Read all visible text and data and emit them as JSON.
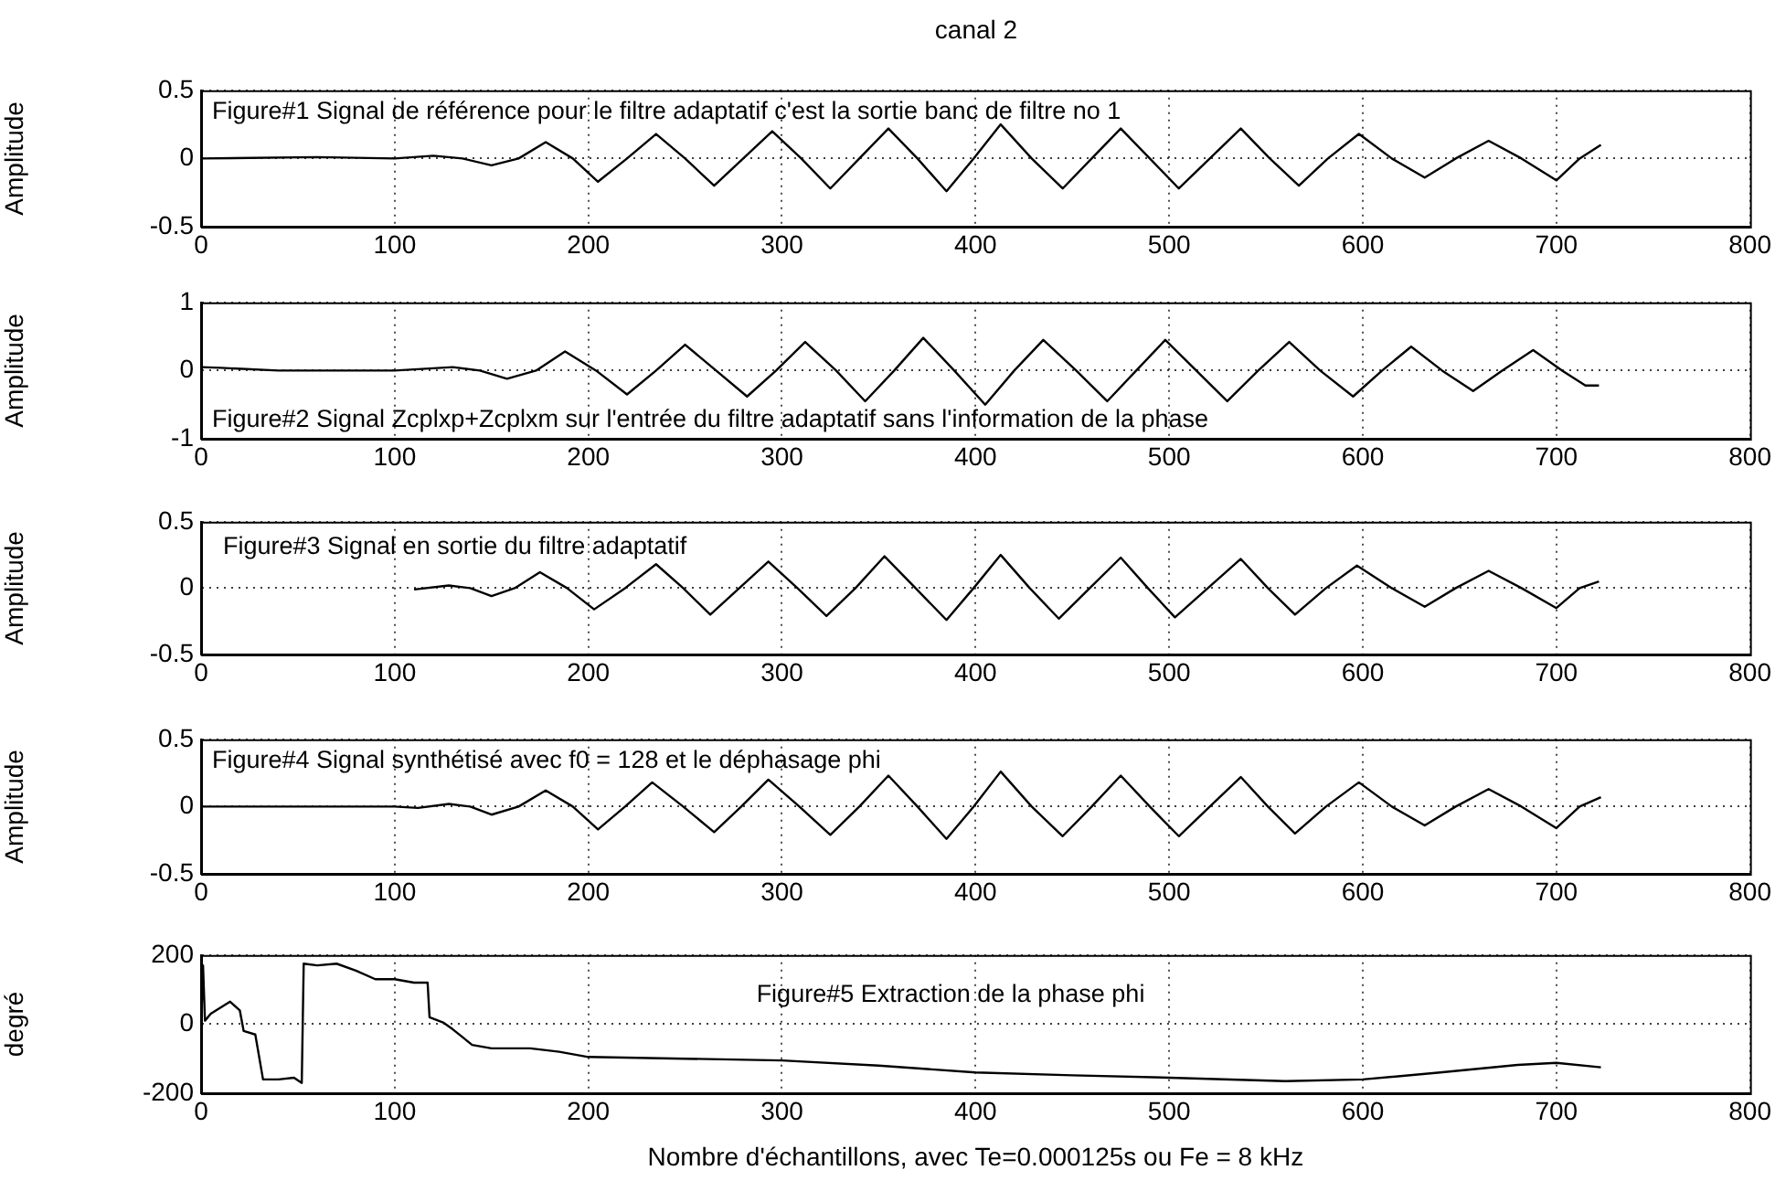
{
  "chart_data": [
    {
      "type": "line",
      "title": "canal 2",
      "ylabel": "Amplitude",
      "annotations": [
        "Figure#1 Signal de référence pour le filtre adaptatif c'est la sortie banc de filtre no 1"
      ],
      "xlim": [
        0,
        800
      ],
      "xticks": [
        0,
        100,
        200,
        300,
        400,
        500,
        600,
        700,
        800
      ],
      "ylim": [
        -0.5,
        0.5
      ],
      "yticks": [
        -0.5,
        0,
        0.5
      ],
      "grid": true,
      "series": [
        {
          "color": "#000000",
          "x": [
            0,
            60,
            100,
            120,
            135,
            150,
            164,
            178,
            192,
            205,
            220,
            235,
            250,
            265,
            280,
            295,
            310,
            325,
            340,
            355,
            370,
            385,
            399,
            413,
            429,
            445,
            460,
            475,
            490,
            505,
            521,
            537,
            552,
            567,
            582,
            598,
            615,
            632,
            648,
            665,
            682,
            700,
            712,
            723
          ],
          "values": [
            0,
            0.01,
            0,
            0.02,
            0,
            -0.05,
            0,
            0.12,
            0,
            -0.17,
            0,
            0.18,
            0,
            -0.2,
            0,
            0.2,
            0,
            -0.22,
            0,
            0.22,
            0,
            -0.24,
            0,
            0.25,
            0,
            -0.22,
            0,
            0.22,
            0,
            -0.22,
            0,
            0.22,
            0,
            -0.2,
            0,
            0.18,
            0,
            -0.14,
            0,
            0.13,
            0,
            -0.16,
            0,
            0.1
          ]
        }
      ]
    },
    {
      "type": "line",
      "ylabel": "Amplitude",
      "annotations": [
        "Figure#2 Signal Zcplxp+Zcplxm sur l'entrée du filtre adaptatif sans l'information de la phase"
      ],
      "xlim": [
        0,
        800
      ],
      "xticks": [
        0,
        100,
        200,
        300,
        400,
        500,
        600,
        700,
        800
      ],
      "ylim": [
        -1,
        1
      ],
      "yticks": [
        -1,
        0,
        1
      ],
      "grid": true,
      "series": [
        {
          "color": "#000000",
          "x": [
            0,
            10,
            40,
            100,
            130,
            144,
            158,
            173,
            188,
            204,
            220,
            235,
            250,
            266,
            282,
            297,
            312,
            328,
            343,
            358,
            373,
            389,
            405,
            420,
            435,
            452,
            468,
            483,
            498,
            514,
            530,
            546,
            562,
            578,
            595,
            610,
            625,
            641,
            657,
            672,
            688,
            703,
            715,
            722
          ],
          "values": [
            0.05,
            0.04,
            0,
            0,
            0.05,
            0,
            -0.12,
            0,
            0.28,
            0,
            -0.35,
            0,
            0.38,
            0,
            -0.38,
            0,
            0.42,
            0,
            -0.45,
            0,
            0.48,
            0,
            -0.5,
            0,
            0.45,
            0,
            -0.45,
            0,
            0.45,
            0,
            -0.45,
            0,
            0.42,
            0,
            -0.38,
            0,
            0.35,
            0,
            -0.3,
            0,
            0.3,
            0,
            -0.22,
            -0.22
          ]
        }
      ]
    },
    {
      "type": "line",
      "ylabel": "Amplitude",
      "annotations": [
        "Figure#3 Signal en sortie du filtre adaptatif"
      ],
      "xlim": [
        0,
        800
      ],
      "xticks": [
        0,
        100,
        200,
        300,
        400,
        500,
        600,
        700,
        800
      ],
      "ylim": [
        -0.5,
        0.5
      ],
      "yticks": [
        -0.5,
        0,
        0.5
      ],
      "grid": true,
      "series": [
        {
          "color": "#000000",
          "x": [
            110,
            128,
            139,
            150,
            162,
            175,
            189,
            203,
            219,
            235,
            249,
            263,
            278,
            293,
            308,
            323,
            338,
            353,
            369,
            385,
            399,
            413,
            428,
            443,
            459,
            475,
            489,
            503,
            520,
            537,
            551,
            565,
            581,
            597,
            615,
            632,
            648,
            665,
            682,
            700,
            712,
            722
          ],
          "values": [
            -0.01,
            0.02,
            0,
            -0.06,
            0,
            0.12,
            0,
            -0.16,
            0,
            0.18,
            0,
            -0.2,
            0,
            0.2,
            0,
            -0.21,
            0,
            0.24,
            0,
            -0.24,
            0,
            0.25,
            0,
            -0.23,
            0,
            0.23,
            0,
            -0.22,
            0,
            0.22,
            0,
            -0.2,
            0,
            0.17,
            0,
            -0.14,
            0,
            0.13,
            0,
            -0.15,
            0,
            0.05
          ]
        }
      ]
    },
    {
      "type": "line",
      "ylabel": "Amplitude",
      "annotations": [
        "Figure#4 Signal synthétisé avec f0 = 128 et le déphasage phi"
      ],
      "xlim": [
        0,
        800
      ],
      "xticks": [
        0,
        100,
        200,
        300,
        400,
        500,
        600,
        700,
        800
      ],
      "ylim": [
        -0.5,
        0.5
      ],
      "yticks": [
        -0.5,
        0,
        0.5
      ],
      "grid": true,
      "series": [
        {
          "color": "#000000",
          "x": [
            0,
            100,
            112,
            128,
            139,
            150,
            164,
            178,
            192,
            205,
            219,
            233,
            249,
            265,
            279,
            293,
            309,
            325,
            340,
            355,
            370,
            385,
            399,
            413,
            429,
            445,
            460,
            475,
            490,
            505,
            521,
            537,
            551,
            565,
            581,
            598,
            615,
            632,
            648,
            665,
            682,
            700,
            712,
            723
          ],
          "values": [
            0,
            0,
            -0.01,
            0.02,
            0,
            -0.06,
            0,
            0.12,
            0,
            -0.17,
            0,
            0.18,
            0,
            -0.19,
            0,
            0.2,
            0,
            -0.21,
            0,
            0.23,
            0,
            -0.24,
            0,
            0.26,
            0,
            -0.22,
            0,
            0.23,
            0,
            -0.22,
            0,
            0.22,
            0,
            -0.2,
            0,
            0.18,
            0,
            -0.14,
            0,
            0.13,
            0,
            -0.16,
            0,
            0.07
          ]
        }
      ]
    },
    {
      "type": "line",
      "ylabel": "degré",
      "xlabel": "Nombre d'échantillons, avec Te=0.000125s ou Fe = 8 kHz",
      "annotations": [
        "Figure#5 Extraction de la phase phi"
      ],
      "xlim": [
        0,
        800
      ],
      "xticks": [
        0,
        100,
        200,
        300,
        400,
        500,
        600,
        700,
        800
      ],
      "ylim": [
        -200,
        200
      ],
      "yticks": [
        -200,
        0,
        200
      ],
      "grid": true,
      "series": [
        {
          "color": "#000000",
          "x": [
            0,
            1,
            2,
            5,
            15,
            20,
            22,
            28,
            32,
            40,
            48,
            52,
            53,
            60,
            70,
            80,
            90,
            100,
            110,
            117,
            118,
            125,
            130,
            140,
            150,
            170,
            185,
            200,
            250,
            300,
            350,
            400,
            450,
            500,
            560,
            600,
            640,
            680,
            700,
            723
          ],
          "values": [
            -10,
            170,
            10,
            30,
            65,
            40,
            -20,
            -30,
            -160,
            -160,
            -155,
            -170,
            175,
            170,
            175,
            155,
            130,
            130,
            120,
            120,
            20,
            5,
            -15,
            -60,
            -70,
            -70,
            -80,
            -95,
            -100,
            -105,
            -120,
            -140,
            -148,
            -155,
            -165,
            -160,
            -140,
            -118,
            -112,
            -125
          ]
        }
      ]
    }
  ]
}
